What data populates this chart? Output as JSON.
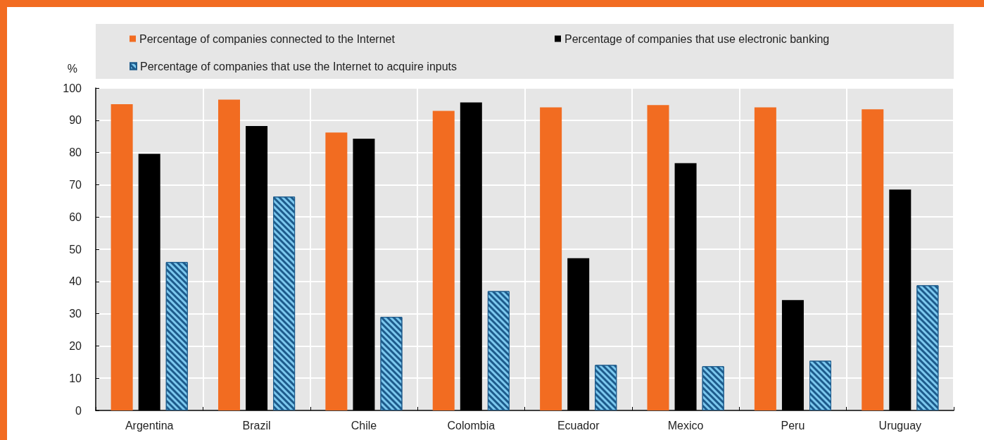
{
  "chart_data": {
    "type": "bar",
    "categories": [
      "Argentina",
      "Brazil",
      "Chile",
      "Colombia",
      "Ecuador",
      "Mexico",
      "Peru",
      "Uruguay"
    ],
    "series": [
      {
        "name": "Percentage of companies connected to the Internet",
        "color": "#f26c21",
        "values": [
          95.0,
          96.4,
          86.2,
          92.9,
          94.0,
          94.7,
          94.0,
          93.4
        ]
      },
      {
        "name": "Percentage of companies that use electronic banking",
        "color": "#000000",
        "values": [
          79.6,
          88.2,
          84.3,
          95.5,
          47.2,
          76.7,
          34.2,
          68.5
        ]
      },
      {
        "name": "Percentage of companies that use the Internet to acquire inputs",
        "color": "#7cc8ee",
        "values": [
          46.0,
          66.3,
          29.0,
          37.0,
          14.1,
          13.7,
          15.4,
          38.8
        ]
      }
    ],
    "ylabel": "%",
    "ylim": [
      0,
      100
    ],
    "yticks": [
      0,
      10,
      20,
      30,
      40,
      50,
      60,
      70,
      80,
      90,
      100
    ],
    "grid": true,
    "legend": "top"
  }
}
